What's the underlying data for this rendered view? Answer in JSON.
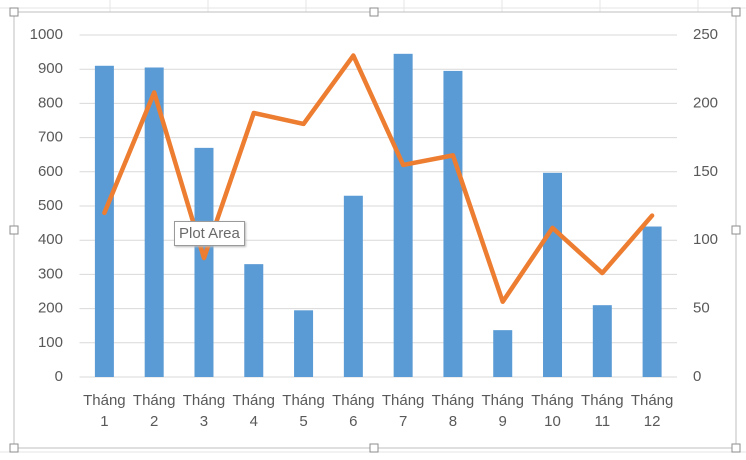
{
  "chart_data": {
    "type": "combo",
    "categories": [
      "Tháng 1",
      "Tháng 2",
      "Tháng 3",
      "Tháng 4",
      "Tháng 5",
      "Tháng 6",
      "Tháng 7",
      "Tháng 8",
      "Tháng 9",
      "Tháng 10",
      "Tháng 11",
      "Tháng 12"
    ],
    "series": [
      {
        "type": "bar",
        "color": "#5b9bd5",
        "values": [
          910,
          905,
          670,
          330,
          195,
          530,
          945,
          895,
          137,
          597,
          210,
          440
        ]
      },
      {
        "type": "line",
        "axis": "y2",
        "color": "#ed7d31",
        "values": [
          120,
          208,
          87,
          193,
          185,
          235,
          155,
          162,
          55,
          109,
          76,
          118
        ]
      }
    ],
    "ylim": [
      0,
      1000
    ],
    "yticks": [
      0,
      100,
      200,
      300,
      400,
      500,
      600,
      700,
      800,
      900,
      1000
    ],
    "y2lim": [
      0,
      250
    ],
    "y2ticks": [
      0,
      50,
      100,
      150,
      200,
      250
    ],
    "grid": true,
    "tooltip": "Plot Area"
  }
}
